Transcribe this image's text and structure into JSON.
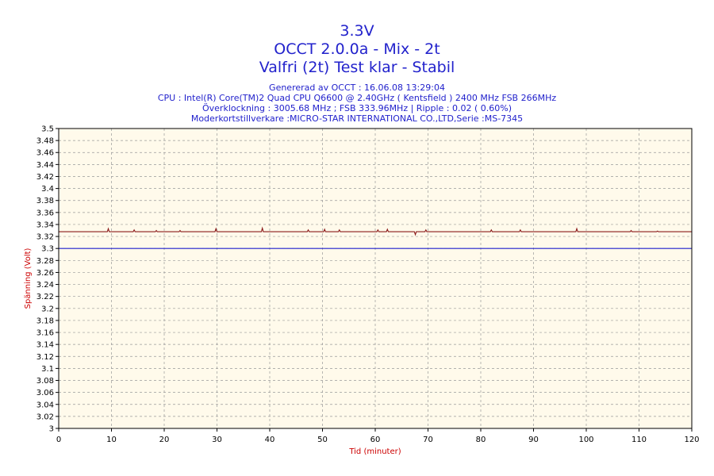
{
  "header": {
    "title1": "3.3V",
    "title2": "OCCT 2.0.0a - Mix - 2t",
    "title3": "Valfri (2t) Test klar - Stabil",
    "info1": "Genererad av OCCT : 16.06.08 13:29:04",
    "info2": "CPU : Intel(R) Core(TM)2 Quad CPU Q6600 @ 2.40GHz ( Kentsfield ) 2400 MHz FSB 266MHz",
    "info3": "Överklockning : 3005.68 MHz ; FSB 333.96MHz | Ripple : 0.02 ( 0.60%)",
    "info4": "Moderkortstillverkare :MICRO-STAR INTERNATIONAL CO.,LTD,Serie :MS-7345"
  },
  "colors": {
    "title": "#2222cc",
    "plot_bg": "#fffaeb",
    "grid": "#999999",
    "series": "#8b1a1a",
    "reference": "#1f1fcc",
    "axis_label": "#cc0000"
  },
  "chart_data": {
    "type": "line",
    "xlabel": "Tid (minuter)",
    "ylabel": "Spänning (Volt)",
    "xlim": [
      0,
      120
    ],
    "ylim": [
      3.0,
      3.5
    ],
    "grid": true,
    "x_ticks": [
      0,
      10,
      20,
      30,
      40,
      50,
      60,
      70,
      80,
      90,
      100,
      110,
      120
    ],
    "y_ticks": [
      3,
      3.02,
      3.04,
      3.06,
      3.08,
      3.1,
      3.12,
      3.14,
      3.16,
      3.18,
      3.2,
      3.22,
      3.24,
      3.26,
      3.28,
      3.3,
      3.32,
      3.34,
      3.36,
      3.38,
      3.4,
      3.42,
      3.44,
      3.46,
      3.48,
      3.5
    ],
    "y_tick_labels": [
      "3",
      "3.02",
      "3.04",
      "3.06",
      "3.08",
      "3.1",
      "3.12",
      "3.14",
      "3.16",
      "3.18",
      "3.2",
      "3.22",
      "3.24",
      "3.26",
      "3.28",
      "3.3",
      "3.32",
      "3.34",
      "3.36",
      "3.38",
      "3.4",
      "3.42",
      "3.44",
      "3.46",
      "3.48",
      "3.5"
    ],
    "series": [
      {
        "color": "#8b1a1a",
        "baseline": 3.328,
        "x": [
          0,
          4,
          9.4,
          14.3,
          18.5,
          23,
          29.8,
          38.6,
          47.3,
          50.4,
          53.2,
          60.5,
          62.3,
          67.6,
          69.6,
          82,
          87.5,
          98.2,
          108.5,
          113.5,
          120
        ],
        "y": [
          3.328,
          3.328,
          3.333,
          3.331,
          3.33,
          3.33,
          3.333,
          3.334,
          3.331,
          3.332,
          3.331,
          3.331,
          3.332,
          3.323,
          3.331,
          3.331,
          3.331,
          3.333,
          3.33,
          3.329,
          3.328
        ]
      },
      {
        "color": "#1f1fcc",
        "x": [
          0,
          120
        ],
        "y": [
          3.3,
          3.3
        ]
      }
    ]
  }
}
